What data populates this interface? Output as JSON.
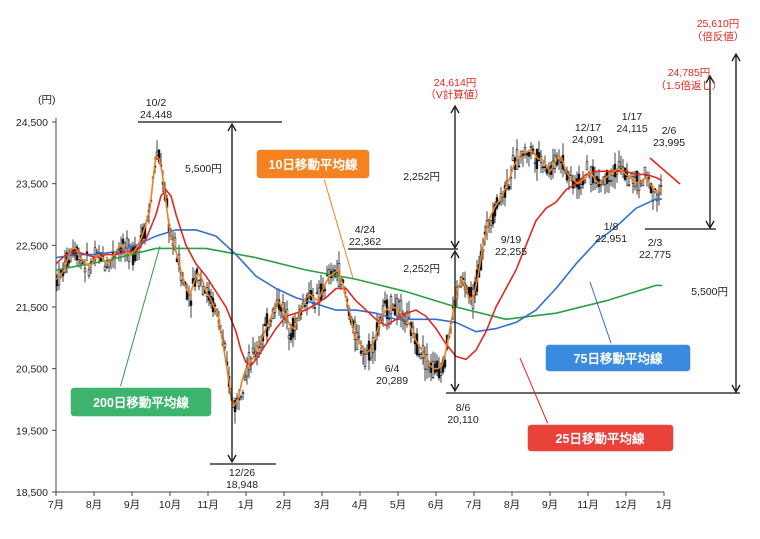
{
  "chart_data": {
    "type": "line",
    "y_unit_label": "(円)",
    "y_ticks": [
      "24,500",
      "23,500",
      "22,500",
      "21,500",
      "20,500",
      "19,500",
      "18,500"
    ],
    "y_tick_values": [
      24500,
      23500,
      22500,
      21500,
      20500,
      19500,
      18500
    ],
    "ylim": [
      18500,
      25800
    ],
    "x_ticks": [
      "7月",
      "8月",
      "9月",
      "10月",
      "11月",
      "1月",
      "2月",
      "3月",
      "4月",
      "5月",
      "6月",
      "7月",
      "8月",
      "9月",
      "11月",
      "12月",
      "1月"
    ],
    "grid": false,
    "series": [
      {
        "name": "10日移動平均線",
        "color": "#f08020",
        "x": [
          0,
          4,
          8,
          12,
          16,
          20,
          24,
          30,
          34,
          38,
          42,
          46,
          50,
          54,
          58,
          62,
          66,
          70,
          74,
          78,
          82,
          86,
          90,
          94,
          96,
          98,
          100,
          103,
          106,
          110,
          114,
          118,
          122,
          126,
          130,
          134,
          138,
          142,
          146,
          150,
          154,
          158,
          162,
          166,
          170,
          174,
          178,
          182,
          186,
          190,
          194,
          198,
          202,
          206,
          210,
          214,
          218,
          222,
          226,
          230,
          234,
          238,
          242,
          246,
          250,
          254,
          258,
          262,
          266,
          270,
          274,
          278,
          282,
          286,
          290,
          294,
          298,
          302,
          306,
          310,
          314,
          318,
          322,
          326,
          330,
          334,
          338,
          342,
          346,
          350,
          354,
          358,
          362,
          366,
          370,
          374,
          378,
          382,
          386,
          390,
          394,
          398,
          402,
          406,
          410,
          414,
          418,
          422,
          426,
          430,
          434,
          438,
          442,
          446,
          450,
          454,
          458,
          462,
          466,
          470,
          474,
          478,
          482,
          486,
          490,
          494,
          498,
          502,
          506,
          510,
          514,
          518,
          522,
          526,
          530,
          534,
          538,
          542,
          546,
          550,
          554,
          558,
          562,
          566,
          570,
          574,
          578,
          582,
          586,
          590,
          594,
          598,
          602,
          606
        ],
        "y": [
          21950,
          22000,
          22100,
          22300,
          22450,
          22450,
          22300,
          22200,
          22150,
          22250,
          22350,
          22300,
          22200,
          22250,
          22350,
          22450,
          22500,
          22400,
          22350,
          22400,
          22500,
          22650,
          22850,
          23100,
          23400,
          23700,
          23950,
          23900,
          23700,
          23200,
          22700,
          22500,
          22300,
          22000,
          21800,
          21700,
          21900,
          22050,
          21950,
          21750,
          21650,
          21500,
          21400,
          21000,
          20600,
          20200,
          19900,
          20000,
          20300,
          20500,
          20600,
          20700,
          20850,
          21000,
          21150,
          21300,
          21450,
          21600,
          21500,
          21350,
          21200,
          21150,
          21300,
          21500,
          21650,
          21700,
          21650,
          21600,
          21750,
          21900,
          22000,
          22050,
          22100,
          21900,
          21650,
          21400,
          21100,
          20950,
          20850,
          20750,
          20800,
          20950,
          21150,
          21350,
          21450,
          21500,
          21500,
          21450,
          21350,
          21300,
          21200,
          21000,
          20900,
          20800,
          20650,
          20550,
          20500,
          20500,
          20550,
          20800,
          21150,
          21500,
          21800,
          21950,
          21800,
          21600,
          21700,
          22000,
          22400,
          22700,
          22950,
          23100,
          23200,
          23300,
          23450,
          23600,
          23800,
          23900,
          24000,
          24000,
          24050,
          24000,
          23900,
          23900,
          23800,
          23700,
          23800,
          23950,
          23900,
          23700,
          23600,
          23550,
          23500,
          23550,
          23600,
          23700,
          23600,
          23500,
          23550,
          23600,
          23650,
          23700,
          23750,
          23700,
          23650,
          23600,
          23550,
          23500,
          23550,
          23600,
          23500,
          23400,
          23350,
          23400
        ]
      },
      {
        "name": "25日移動平均線",
        "color": "#e0281e",
        "x": [
          0,
          10,
          20,
          30,
          40,
          50,
          60,
          70,
          80,
          90,
          100,
          105,
          110,
          115,
          120,
          130,
          140,
          150,
          160,
          170,
          180,
          185,
          190,
          195,
          200,
          210,
          220,
          230,
          240,
          250,
          260,
          270,
          280,
          290,
          300,
          310,
          320,
          330,
          340,
          350,
          360,
          370,
          380,
          390,
          400,
          410,
          420,
          430,
          440,
          450,
          460,
          470,
          480,
          490,
          500,
          510,
          520,
          530,
          540,
          550,
          560,
          570,
          580,
          590,
          600,
          606
        ],
        "y": [
          22200,
          22350,
          22400,
          22350,
          22300,
          22350,
          22350,
          22400,
          22400,
          22600,
          23000,
          23300,
          23400,
          23300,
          23000,
          22500,
          22200,
          22000,
          21750,
          21500,
          21100,
          20800,
          20600,
          20550,
          20650,
          20900,
          21150,
          21350,
          21400,
          21450,
          21550,
          21650,
          21800,
          21800,
          21600,
          21450,
          21300,
          21200,
          21300,
          21400,
          21450,
          21350,
          21150,
          20900,
          20700,
          20650,
          20800,
          21100,
          21500,
          21800,
          22100,
          22500,
          22900,
          23100,
          23200,
          23400,
          23500,
          23650,
          23700,
          23700,
          23700,
          23700,
          23650,
          23650,
          23600,
          23550
        ]
      },
      {
        "name": "75日移動平均線",
        "color": "#2f6fd0",
        "x": [
          0,
          20,
          40,
          60,
          80,
          100,
          120,
          140,
          160,
          180,
          200,
          220,
          240,
          260,
          280,
          300,
          320,
          340,
          360,
          380,
          400,
          420,
          440,
          460,
          480,
          500,
          520,
          540,
          560,
          580,
          600,
          606
        ],
        "y": [
          22300,
          22350,
          22350,
          22400,
          22500,
          22650,
          22750,
          22750,
          22650,
          22350,
          22000,
          21800,
          21650,
          21550,
          21450,
          21450,
          21400,
          21300,
          21300,
          21300,
          21250,
          21100,
          21150,
          21250,
          21450,
          21800,
          22200,
          22550,
          22800,
          23100,
          23250,
          23250
        ]
      },
      {
        "name": "200日移動平均線",
        "color": "#2aa042",
        "x": [
          0,
          50,
          100,
          150,
          200,
          250,
          300,
          350,
          400,
          450,
          500,
          550,
          600,
          606
        ],
        "y": [
          22100,
          22250,
          22450,
          22450,
          22300,
          22100,
          21950,
          21750,
          21500,
          21300,
          21400,
          21600,
          21850,
          21850
        ]
      }
    ],
    "label_boxes": [
      {
        "key": "ma10",
        "text": "10日移動平均線",
        "color": "#f58220"
      },
      {
        "key": "ma25",
        "text": "25日移動平均線",
        "color": "#e8423a"
      },
      {
        "key": "ma75",
        "text": "75日移動平均線",
        "color": "#3a8be0"
      },
      {
        "key": "ma200",
        "text": "200日移動平均線",
        "color": "#3cb46e"
      }
    ],
    "annotations": {
      "oct2_date": "10/2",
      "oct2_value": "24,448",
      "dec26_date": "12/26",
      "dec26_value": "18,948",
      "apr24_date": "4/24",
      "apr24_value": "22,362",
      "jun4_date": "6/4",
      "jun4_value": "20,289",
      "aug6_date": "8/6",
      "aug6_value": "20,110",
      "sep19_date": "9/19",
      "sep19_value": "22,255",
      "dec17_date": "12/17",
      "dec17_value": "24,091",
      "jan17_date": "1/17",
      "jan17_value": "24,115",
      "feb6_date": "2/6",
      "feb6_value": "23,995",
      "jan8_date": "1/8",
      "jan8_value": "22,951",
      "feb3_date": "2/3",
      "feb3_value": "22,775",
      "drop_left": "5,500円",
      "drop_right": "5,500円",
      "v_top": "2,252円",
      "v_bottom": "2,252円",
      "v_target_value": "24,614円",
      "v_target_note": "（V計算値）",
      "hanpuku_value": "25,610円",
      "hanpuku_note": "（倍反値）",
      "return_value": "24,785円",
      "return_note": "（1.5倍返し）"
    }
  }
}
